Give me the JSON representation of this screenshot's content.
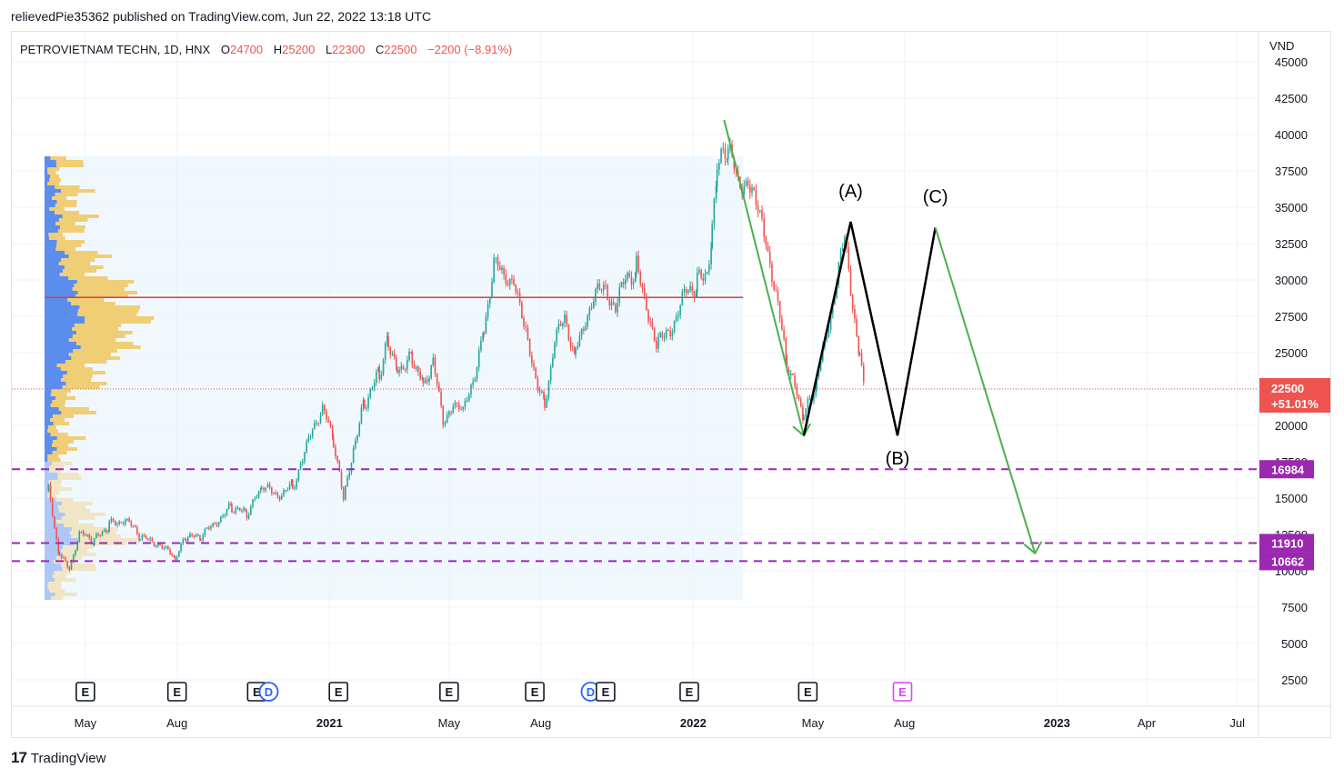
{
  "header": {
    "published_line": "relievedPie35362 published on TradingView.com, Jun 22, 2022 13:18 UTC"
  },
  "legend": {
    "symbol": "PETROVIETNAM TECHN, 1D, HNX",
    "open_label": "O",
    "open_value": "24700",
    "high_label": "H",
    "high_value": "25200",
    "low_label": "L",
    "low_value": "22300",
    "close_label": "C",
    "close_value": "22500",
    "change": "−2200 (−8.91%)"
  },
  "footer": {
    "brand": "TradingView",
    "logo_glyph": "17"
  },
  "colors": {
    "up": "#26a69a",
    "down": "#ef5350",
    "profile_blue": "#5b8def",
    "profile_yellow": "#f0c75e",
    "purple": "#9c27b0",
    "green_path": "#4caf50",
    "poc_red": "#e53935",
    "price_label": "#ef5350"
  },
  "chart_data": {
    "type": "line",
    "price_axis": {
      "unit": "VND",
      "ticks": [
        2500,
        5000,
        7500,
        10000,
        12500,
        15000,
        17500,
        20000,
        22500,
        25000,
        27500,
        30000,
        32500,
        35000,
        37500,
        40000,
        42500,
        45000
      ],
      "tick_labels": [
        "2500",
        "5000",
        "7500",
        "10000",
        "12500",
        "15000",
        "17500",
        "20000",
        "",
        "25000",
        "27500",
        "30000",
        "32500",
        "35000",
        "37500",
        "40000",
        "42500",
        "45000"
      ]
    },
    "time_axis": {
      "labels": [
        "May",
        "Aug",
        "2021",
        "May",
        "Aug",
        "2022",
        "May",
        "Aug",
        "2023",
        "Apr",
        "Jul"
      ],
      "bold": [
        false,
        false,
        true,
        false,
        false,
        true,
        false,
        false,
        true,
        false,
        false
      ]
    },
    "current_price": {
      "value": 22500,
      "label": "22500",
      "change_label": "+51.01%"
    },
    "levels": [
      {
        "value": 16984,
        "label": "16984"
      },
      {
        "value": 11910,
        "label": "11910"
      },
      {
        "value": 10662,
        "label": "10662"
      }
    ],
    "poc_level": 28800,
    "price_series": [
      [
        "2020-03-25",
        15500
      ],
      [
        "2020-04-05",
        11000
      ],
      [
        "2020-04-15",
        10300
      ],
      [
        "2020-04-25",
        12500
      ],
      [
        "2020-05-10",
        12000
      ],
      [
        "2020-05-25",
        13200
      ],
      [
        "2020-06-10",
        13600
      ],
      [
        "2020-06-25",
        12200
      ],
      [
        "2020-07-15",
        11900
      ],
      [
        "2020-07-30",
        10700
      ],
      [
        "2020-08-10",
        12300
      ],
      [
        "2020-08-25",
        12200
      ],
      [
        "2020-09-10",
        13500
      ],
      [
        "2020-09-25",
        14400
      ],
      [
        "2020-10-10",
        13800
      ],
      [
        "2020-10-25",
        15600
      ],
      [
        "2020-11-10",
        15300
      ],
      [
        "2020-11-25",
        15800
      ],
      [
        "2020-12-05",
        17400
      ],
      [
        "2020-12-15",
        20000
      ],
      [
        "2020-12-25",
        21200
      ],
      [
        "2021-01-05",
        18800
      ],
      [
        "2021-01-15",
        14800
      ],
      [
        "2021-01-25",
        18600
      ],
      [
        "2021-02-05",
        21600
      ],
      [
        "2021-02-20",
        23500
      ],
      [
        "2021-03-01",
        26000
      ],
      [
        "2021-03-10",
        24000
      ],
      [
        "2021-03-25",
        24800
      ],
      [
        "2021-04-05",
        23000
      ],
      [
        "2021-04-15",
        24400
      ],
      [
        "2021-04-25",
        20000
      ],
      [
        "2021-05-05",
        21800
      ],
      [
        "2021-05-15",
        20700
      ],
      [
        "2021-05-25",
        23200
      ],
      [
        "2021-06-05",
        26800
      ],
      [
        "2021-06-15",
        31300
      ],
      [
        "2021-06-25",
        29800
      ],
      [
        "2021-07-05",
        30500
      ],
      [
        "2021-07-15",
        26500
      ],
      [
        "2021-07-25",
        24000
      ],
      [
        "2021-08-05",
        21500
      ],
      [
        "2021-08-15",
        26000
      ],
      [
        "2021-08-25",
        27000
      ],
      [
        "2021-09-05",
        25000
      ],
      [
        "2021-09-15",
        27600
      ],
      [
        "2021-09-25",
        28800
      ],
      [
        "2021-10-05",
        29500
      ],
      [
        "2021-10-15",
        28200
      ],
      [
        "2021-10-25",
        29800
      ],
      [
        "2021-11-05",
        30800
      ],
      [
        "2021-11-15",
        28600
      ],
      [
        "2021-11-25",
        25200
      ],
      [
        "2021-12-05",
        26400
      ],
      [
        "2021-12-15",
        27500
      ],
      [
        "2021-12-25",
        29000
      ],
      [
        "2022-01-05",
        29800
      ],
      [
        "2022-01-15",
        30800
      ],
      [
        "2022-01-20",
        33500
      ],
      [
        "2022-01-25",
        37500
      ],
      [
        "2022-02-05",
        38800
      ],
      [
        "2022-02-15",
        36500
      ],
      [
        "2022-02-25",
        37200
      ],
      [
        "2022-03-05",
        34800
      ],
      [
        "2022-03-15",
        33000
      ],
      [
        "2022-03-25",
        29000
      ],
      [
        "2022-04-05",
        24000
      ],
      [
        "2022-04-15",
        22000
      ],
      [
        "2022-04-22",
        20500
      ],
      [
        "2022-05-05",
        22800
      ],
      [
        "2022-05-15",
        26500
      ],
      [
        "2022-05-25",
        30000
      ],
      [
        "2022-06-02",
        32600
      ],
      [
        "2022-06-10",
        28500
      ],
      [
        "2022-06-17",
        25000
      ],
      [
        "2022-06-22",
        22500
      ]
    ],
    "volume_profile": {
      "range": [
        8000,
        38500
      ],
      "poc_price": 28800
    },
    "projection_paths": [
      {
        "color": "green",
        "points": [
          [
            "2022-02-01",
            41000
          ],
          [
            "2022-04-22",
            19300
          ]
        ]
      },
      {
        "color": "black",
        "points": [
          [
            "2022-04-22",
            19300
          ],
          [
            "2022-06-08",
            34000
          ],
          [
            "2022-07-25",
            19300
          ],
          [
            "2022-09-01",
            33600
          ]
        ]
      },
      {
        "color": "green",
        "points": [
          [
            "2022-09-01",
            33600
          ],
          [
            "2022-12-10",
            11200
          ]
        ]
      }
    ],
    "wave_labels": [
      {
        "text": "(A)",
        "date": "2022-06-08",
        "price": 35700
      },
      {
        "text": "(B)",
        "date": "2022-07-25",
        "price": 17300
      },
      {
        "text": "(C)",
        "date": "2022-09-01",
        "price": 35300
      }
    ],
    "events": [
      {
        "type": "E",
        "date": "2020-05-01"
      },
      {
        "type": "E",
        "date": "2020-08-01"
      },
      {
        "type": "E",
        "date": "2020-10-20"
      },
      {
        "type": "D",
        "date": "2020-11-01"
      },
      {
        "type": "E",
        "date": "2021-01-10"
      },
      {
        "type": "E",
        "date": "2021-05-01"
      },
      {
        "type": "E",
        "date": "2021-07-26"
      },
      {
        "type": "D",
        "date": "2021-09-20"
      },
      {
        "type": "E",
        "date": "2021-10-05"
      },
      {
        "type": "E",
        "date": "2021-12-28"
      },
      {
        "type": "E",
        "date": "2022-04-26"
      },
      {
        "type": "E",
        "date": "2022-07-30",
        "future": true
      }
    ]
  }
}
